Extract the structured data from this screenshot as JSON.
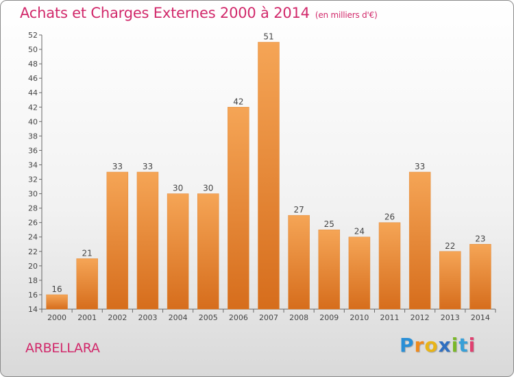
{
  "header": {
    "title": "Achats et Charges Externes 2000 à 2014",
    "subtitle": "(en milliers d'€)"
  },
  "footer": {
    "city": "ARBELLARA",
    "brand": "Proxiti"
  },
  "colors": {
    "accent": "#d1286a",
    "bar_top": "#f5a556",
    "bar_bottom": "#d66d1c"
  },
  "chart_data": {
    "type": "bar",
    "title": "Achats et Charges Externes 2000 à 2014",
    "subtitle": "(en milliers d'€)",
    "categories": [
      "2000",
      "2001",
      "2002",
      "2003",
      "2004",
      "2005",
      "2006",
      "2007",
      "2008",
      "2009",
      "2010",
      "2011",
      "2012",
      "2013",
      "2014"
    ],
    "values": [
      16,
      21,
      33,
      33,
      30,
      30,
      42,
      51,
      27,
      25,
      24,
      26,
      33,
      22,
      23
    ],
    "ylim": [
      14,
      52
    ],
    "yticks": [
      14,
      16,
      18,
      20,
      22,
      24,
      26,
      28,
      30,
      32,
      34,
      36,
      38,
      40,
      42,
      44,
      46,
      48,
      50,
      52
    ],
    "grid": false,
    "data_labels": true
  }
}
